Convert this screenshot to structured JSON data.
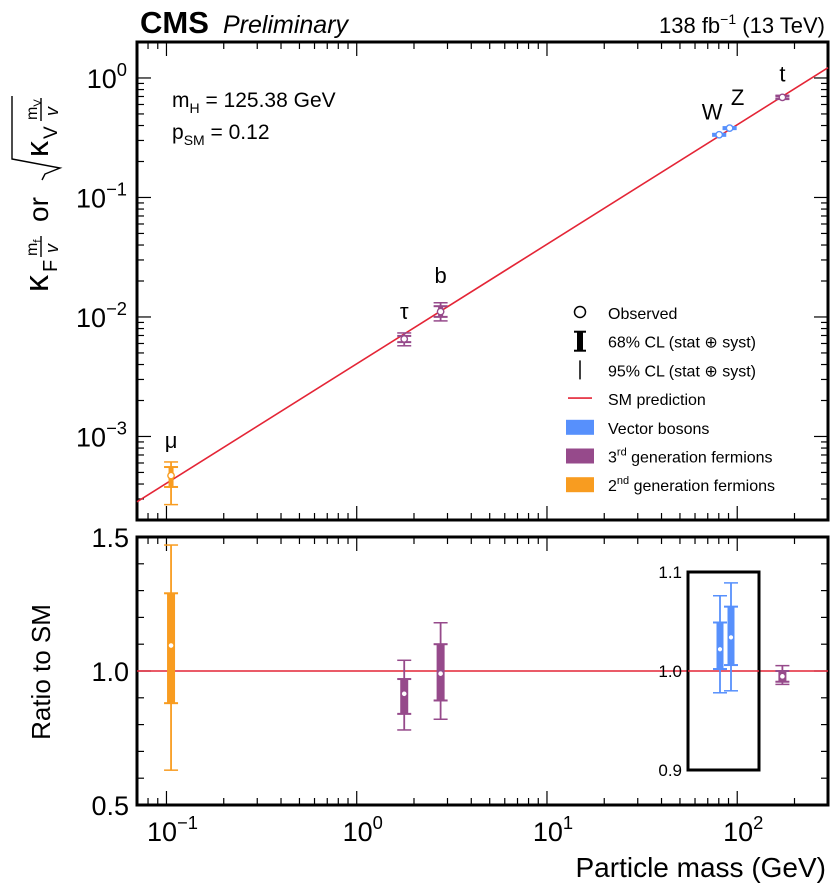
{
  "header": {
    "experiment": "CMS",
    "status": "Preliminary",
    "lumi_prefix": "138 fb",
    "lumi_exp": "−1",
    "lumi_suffix": " (13 TeV)"
  },
  "colors": {
    "sm_line": "#e42536",
    "vector_bosons": "#5790fc",
    "third_gen": "#964a8b",
    "second_gen": "#f89c20",
    "frame": "#000000"
  },
  "chart_data": [
    {
      "type": "scatter",
      "panel": "top",
      "xscale": "log",
      "yscale": "log",
      "xlim": [
        0.07,
        300
      ],
      "ylim": [
        0.0002,
        2.0
      ],
      "xlabel": "Particle mass (GeV)",
      "ylabel": "κF mf/v or √κV mV/v",
      "x_ticks": [
        0.1,
        1,
        10,
        100
      ],
      "y_ticks": [
        {
          "value": 0.001,
          "base": "10",
          "exp": "−3"
        },
        {
          "value": 0.01,
          "base": "10",
          "exp": "−2"
        },
        {
          "value": 0.1,
          "base": "10",
          "exp": "−1"
        },
        {
          "value": 1,
          "base": "10",
          "exp": "0"
        }
      ],
      "annotations": {
        "mass_label": "m",
        "mass_sub": "H",
        "mass_value": " = 125.38 GeV",
        "psm_label": "p",
        "psm_sub": "SM",
        "psm_value": " = 0.12"
      },
      "sm_prediction": {
        "x": [
          0.07,
          300
        ],
        "y": [
          0.000284,
          1.218
        ]
      },
      "points": [
        {
          "particle": "μ",
          "mass": 0.1057,
          "value": 0.00047,
          "cl68": [
            0.000378,
            0.000555
          ],
          "cl95": [
            0.000269,
            0.000612
          ],
          "group": "second_gen"
        },
        {
          "particle": "τ",
          "mass": 1.777,
          "value": 0.00654,
          "cl68": [
            0.00616,
            0.00694
          ],
          "cl95": [
            0.00574,
            0.00735
          ],
          "group": "third_gen"
        },
        {
          "particle": "b",
          "mass": 2.76,
          "value": 0.01108,
          "cl68": [
            0.01002,
            0.01231
          ],
          "cl95": [
            0.00927,
            0.01315
          ],
          "group": "third_gen"
        },
        {
          "particle": "W",
          "mass": 80.38,
          "value": 0.3347,
          "cl68": [
            0.3299,
            0.3396
          ],
          "cl95": [
            0.3264,
            0.3428
          ],
          "group": "vector_bosons"
        },
        {
          "particle": "Z",
          "mass": 91.19,
          "value": 0.3806,
          "cl68": [
            0.3751,
            0.386
          ],
          "cl95": [
            0.3713,
            0.3898
          ],
          "group": "vector_bosons"
        },
        {
          "particle": "t",
          "mass": 172.76,
          "value": 0.6876,
          "cl68": [
            0.6728,
            0.7051
          ],
          "cl95": [
            0.6622,
            0.7156
          ],
          "group": "third_gen"
        }
      ],
      "legend": {
        "placement": "bottom-right",
        "entries": [
          {
            "marker": "circle",
            "label": "Observed"
          },
          {
            "marker": "thick-bar",
            "label": "68% CL (stat ⊕ syst)"
          },
          {
            "marker": "thin-bar",
            "label": "95% CL (stat ⊕ syst)"
          },
          {
            "marker": "line",
            "color_key": "sm_line",
            "label": "SM prediction"
          },
          {
            "marker": "box",
            "color_key": "vector_bosons",
            "label": "Vector bosons"
          },
          {
            "marker": "box",
            "color_key": "third_gen",
            "label_pre": "3",
            "label_sup": "rd",
            "label_post": " generation fermions"
          },
          {
            "marker": "box",
            "color_key": "second_gen",
            "label_pre": "2",
            "label_sup": "nd",
            "label_post": " generation fermions"
          }
        ]
      }
    },
    {
      "type": "scatter",
      "panel": "bottom",
      "xscale": "log",
      "xlim": [
        0.07,
        300
      ],
      "ylim": [
        0.5,
        1.5
      ],
      "ylabel": "Ratio to SM",
      "y_ticks": [
        "0.5",
        "1.0",
        "1.5"
      ],
      "x_ticks": [
        {
          "value": 0.1,
          "base": "10",
          "exp": "−1"
        },
        {
          "value": 1,
          "base": "10",
          "exp": "0"
        },
        {
          "value": 10,
          "base": "10",
          "exp": "1"
        },
        {
          "value": 100,
          "base": "10",
          "exp": "2"
        }
      ],
      "reference": 1.0,
      "points": [
        {
          "particle": "μ",
          "mass": 0.1057,
          "ratio": 1.095,
          "cl68": [
            0.88,
            1.29
          ],
          "cl95": [
            0.63,
            1.47
          ],
          "group": "second_gen"
        },
        {
          "particle": "τ",
          "mass": 1.777,
          "ratio": 0.915,
          "cl68": [
            0.84,
            0.97
          ],
          "cl95": [
            0.78,
            1.04
          ],
          "group": "third_gen"
        },
        {
          "particle": "b",
          "mass": 2.76,
          "ratio": 0.99,
          "cl68": [
            0.89,
            1.1
          ],
          "cl95": [
            0.82,
            1.18
          ],
          "group": "third_gen"
        },
        {
          "particle": "t",
          "mass": 172.76,
          "ratio": 0.98,
          "cl68": [
            0.96,
            1.0
          ],
          "cl95": [
            0.95,
            1.02
          ],
          "group": "third_gen"
        }
      ],
      "inset": {
        "ylim": [
          0.9,
          1.1
        ],
        "y_ticks": [
          "0.9",
          "1.0",
          "1.1"
        ],
        "points": [
          {
            "particle": "W",
            "ratio": 1.022,
            "cl68": [
              1.002,
              1.049
            ],
            "cl95": [
              0.978,
              1.076
            ]
          },
          {
            "particle": "Z",
            "ratio": 1.034,
            "cl68": [
              1.006,
              1.065
            ],
            "cl95": [
              0.98,
              1.089
            ]
          }
        ]
      }
    }
  ]
}
